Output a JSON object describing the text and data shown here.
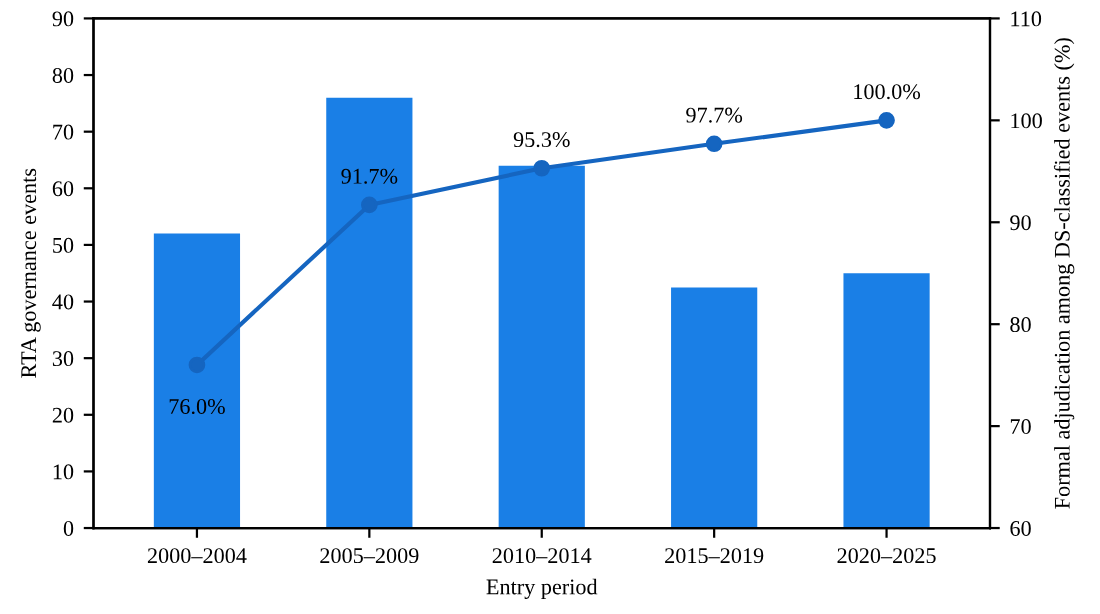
{
  "chart_data": {
    "type": "bar",
    "xlabel": "Entry period",
    "ylabel": "RTA governance events",
    "y2label": "Formal adjudication among DS-classified events (%)",
    "categories": [
      "2000–2004",
      "2005–2009",
      "2010–2014",
      "2015–2019",
      "2020–2025"
    ],
    "series": [
      {
        "color": "#1a7fe6",
        "values": [
          52,
          76,
          64,
          42.5,
          45
        ]
      },
      {
        "type": "line",
        "axis": "y2",
        "color": "#1565c0",
        "marker": "circle",
        "values": [
          76.0,
          91.7,
          95.3,
          97.7,
          100.0
        ],
        "value_labels": [
          "76.0%",
          "91.7%",
          "95.3%",
          "97.7%",
          "100.0%"
        ]
      }
    ],
    "ylim": [
      0,
      90
    ],
    "yticks": [
      0,
      10,
      20,
      30,
      40,
      50,
      60,
      70,
      80,
      90
    ],
    "y2lim": [
      60,
      110
    ],
    "y2ticks": [
      60,
      70,
      80,
      90,
      100,
      110
    ],
    "grid": false,
    "legend": false
  }
}
